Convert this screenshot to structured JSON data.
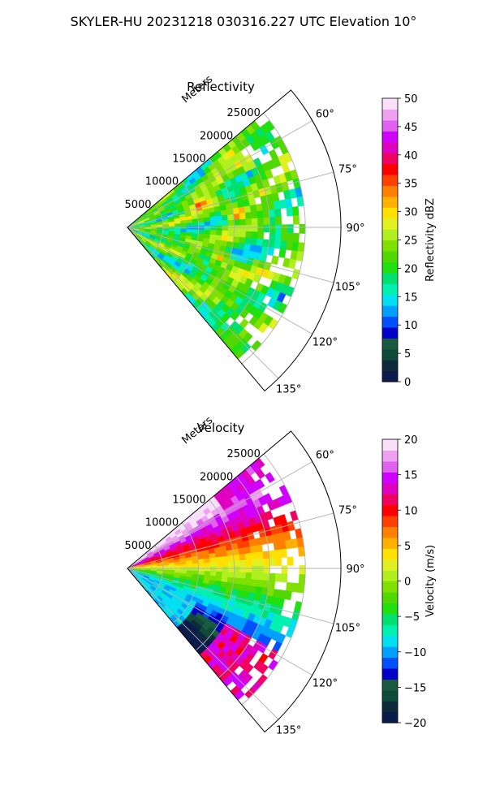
{
  "suptitle": "SKYLER-HU  20231218  030316.227 UTC Elevation 10°",
  "chart_data": [
    {
      "type": "heatmap",
      "projection": "polar-sector",
      "title": "Reflectivity",
      "radial_label": "Meters",
      "r_ticks": [
        5000,
        10000,
        15000,
        20000,
        25000
      ],
      "r_tick_labels": [
        "5000",
        "10000",
        "15000",
        "20000",
        "25000"
      ],
      "r_max": 30000,
      "theta_ticks": [
        60,
        75,
        90,
        105,
        120,
        135
      ],
      "theta_tick_labels": [
        "60°",
        "75°",
        "90°",
        "105°",
        "120°",
        "135°"
      ],
      "theta_range": [
        50,
        140
      ],
      "theta_zero": "north",
      "theta_direction": "clockwise",
      "grid": true,
      "colorbar": {
        "label": "Reflectivity dBZ",
        "range": [
          0,
          50
        ],
        "ticks": [
          0,
          5,
          10,
          15,
          20,
          25,
          30,
          35,
          40,
          45,
          50
        ],
        "tick_labels": [
          "0",
          "5",
          "10",
          "15",
          "20",
          "25",
          "30",
          "35",
          "40",
          "45",
          "50"
        ]
      }
    },
    {
      "type": "heatmap",
      "projection": "polar-sector",
      "title": "Velocity",
      "radial_label": "Meters",
      "r_ticks": [
        5000,
        10000,
        15000,
        20000,
        25000
      ],
      "r_tick_labels": [
        "5000",
        "10000",
        "15000",
        "20000",
        "25000"
      ],
      "r_max": 30000,
      "theta_ticks": [
        60,
        75,
        90,
        105,
        120,
        135
      ],
      "theta_tick_labels": [
        "60°",
        "75°",
        "90°",
        "105°",
        "120°",
        "135°"
      ],
      "theta_range": [
        50,
        140
      ],
      "theta_zero": "north",
      "theta_direction": "clockwise",
      "grid": true,
      "colorbar": {
        "label": "Velocity (m/s)",
        "range": [
          -20,
          20
        ],
        "ticks": [
          -20,
          -15,
          -10,
          -5,
          0,
          5,
          10,
          15,
          20
        ],
        "tick_labels": [
          "−20",
          "−15",
          "−10",
          "−5",
          "0",
          "5",
          "10",
          "15",
          "20"
        ]
      }
    }
  ],
  "colormap": [
    "#0a1a4a",
    "#0d2a3a",
    "#0f4a3a",
    "#1a5a40",
    "#0000c8",
    "#0050ff",
    "#00a0ff",
    "#00e0f0",
    "#00f0b0",
    "#00e070",
    "#20e010",
    "#50d800",
    "#80e000",
    "#b0f020",
    "#e0f020",
    "#ffe000",
    "#ffb000",
    "#ff8000",
    "#ff4000",
    "#ff0000",
    "#f00060",
    "#e000c0",
    "#d000ff",
    "#e060f0",
    "#f0a0f0",
    "#f8e0f8"
  ]
}
